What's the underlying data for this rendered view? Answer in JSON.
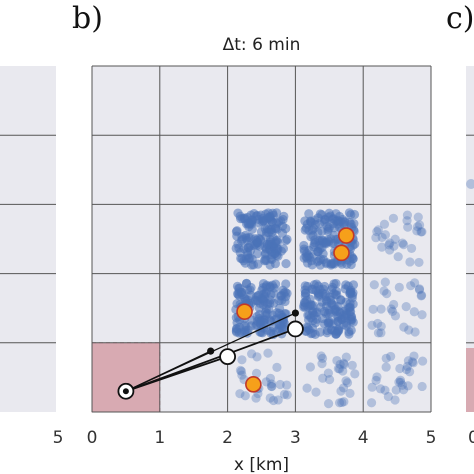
{
  "panel_left_tick": "5",
  "panel_right_tick": "0",
  "chart_data": {
    "type": "scatter",
    "panel_label": "b)",
    "next_panel_label": "c)",
    "title": "Δt: 6 min",
    "xlabel": "x [km]",
    "ylabel": "",
    "xlim": [
      0,
      5
    ],
    "ylim": [
      0,
      5
    ],
    "x_ticks": [
      "0",
      "1",
      "2",
      "3",
      "4",
      "5"
    ],
    "grid": true,
    "colors": {
      "background": "#e9e9ef",
      "grid": "#555555",
      "cloud": "#4a72b8",
      "highlight_fill": "#f6a01a",
      "highlight_edge": "#c0392b",
      "shaded_cell": "#d8aab2",
      "track": "#111111"
    },
    "shaded_cell": {
      "x": [
        0,
        1
      ],
      "y": [
        0,
        1
      ]
    },
    "point_clouds": [
      {
        "cell": [
          2,
          2
        ],
        "density": "high"
      },
      {
        "cell": [
          3,
          2
        ],
        "density": "high"
      },
      {
        "cell": [
          4,
          2
        ],
        "density": "low"
      },
      {
        "cell": [
          2,
          1
        ],
        "density": "high"
      },
      {
        "cell": [
          3,
          1
        ],
        "density": "high"
      },
      {
        "cell": [
          4,
          1
        ],
        "density": "low"
      },
      {
        "cell": [
          2,
          0
        ],
        "density": "low"
      },
      {
        "cell": [
          3,
          0
        ],
        "density": "low"
      },
      {
        "cell": [
          4,
          0
        ],
        "density": "low"
      }
    ],
    "highlighted_points": [
      {
        "x": 3.75,
        "y": 2.55
      },
      {
        "x": 3.68,
        "y": 2.3
      },
      {
        "x": 2.25,
        "y": 1.45
      },
      {
        "x": 2.38,
        "y": 0.4
      }
    ],
    "tracks": [
      {
        "start": [
          0.5,
          0.3
        ],
        "end": [
          2.0,
          0.8
        ],
        "marker": "open_circle"
      },
      {
        "start": [
          0.5,
          0.3
        ],
        "end": [
          3.0,
          1.2
        ],
        "marker": "open_circle"
      }
    ],
    "track_midpoints": [
      {
        "x": 1.75,
        "y": 0.88
      },
      {
        "x": 3.0,
        "y": 1.43
      }
    ]
  }
}
